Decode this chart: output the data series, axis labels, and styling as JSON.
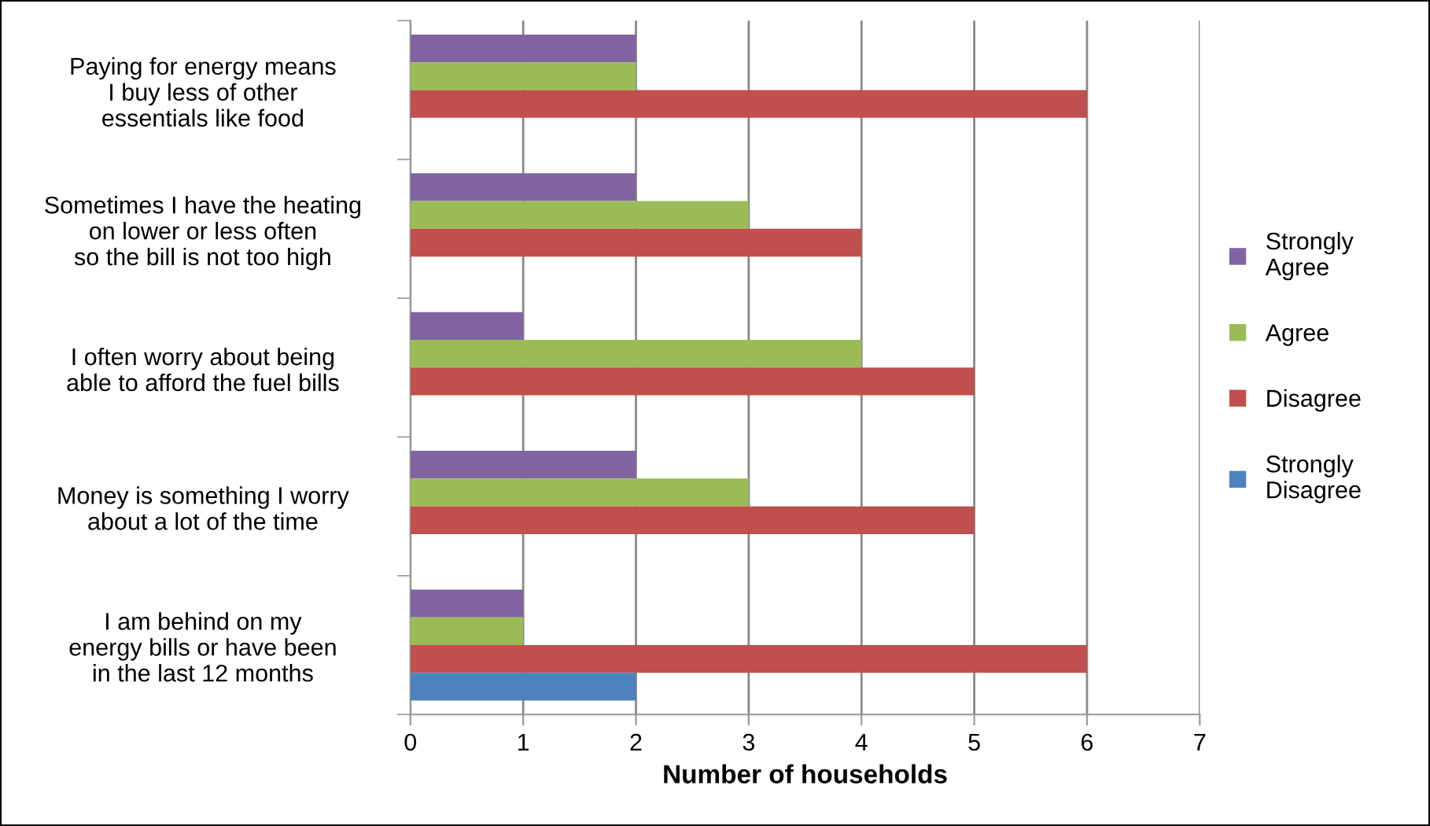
{
  "chart_data": {
    "type": "bar",
    "orientation": "horizontal",
    "xlabel": "Number of households",
    "categories": [
      "Paying for energy means\nI buy less of other\nessentials like food",
      "Sometimes I have the heating\non lower or less often\nso the bill is not too high",
      "I often worry about being\nable to afford the fuel bills",
      "Money is something I worry\nabout a lot of the time",
      "I am behind on my\nenergy bills or have been\nin the last 12 months"
    ],
    "series": [
      {
        "name": "Strongly\nAgree",
        "color": "#8064a2",
        "values": [
          2,
          2,
          1,
          2,
          1
        ]
      },
      {
        "name": "Agree",
        "color": "#9bbb59",
        "values": [
          2,
          3,
          4,
          3,
          1
        ]
      },
      {
        "name": "Disagree",
        "color": "#c0504d",
        "values": [
          6,
          4,
          5,
          5,
          6
        ]
      },
      {
        "name": "Strongly\nDisagree",
        "color": "#4f81bd",
        "values": [
          null,
          null,
          null,
          null,
          2
        ]
      }
    ],
    "xlim": [
      0,
      7
    ],
    "xticks": [
      0,
      1,
      2,
      3,
      4,
      5,
      6,
      7
    ],
    "grid": "x",
    "legend": "right"
  }
}
